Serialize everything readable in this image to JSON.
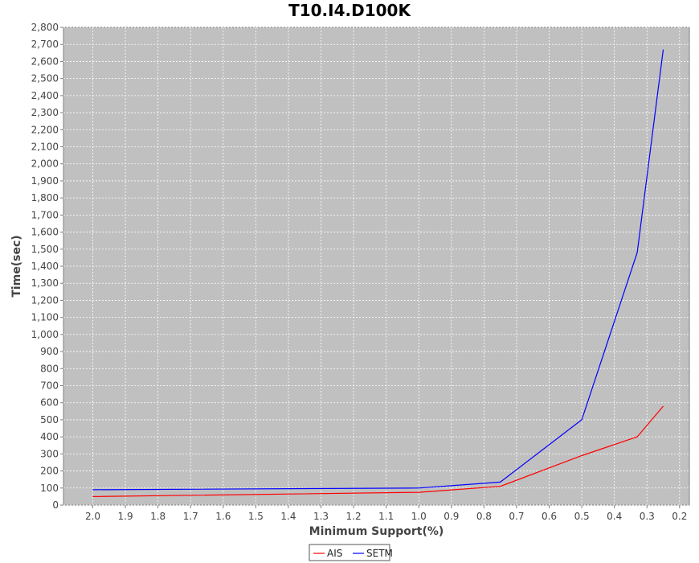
{
  "chart_data": {
    "type": "line",
    "title": "T10.I4.D100K",
    "xlabel": "Minimum Support(%)",
    "ylabel": "Time(sec)",
    "x_reversed": true,
    "xlim": [
      2.09,
      0.17
    ],
    "ylim": [
      0,
      2800
    ],
    "xticks": [
      "2.0",
      "1.9",
      "1.8",
      "1.7",
      "1.6",
      "1.5",
      "1.4",
      "1.3",
      "1.2",
      "1.1",
      "1.0",
      "0.9",
      "0.8",
      "0.7",
      "0.6",
      "0.5",
      "0.4",
      "0.3",
      "0.2"
    ],
    "yticks": [
      "0",
      "100",
      "200",
      "300",
      "400",
      "500",
      "600",
      "700",
      "800",
      "900",
      "1,000",
      "1,100",
      "1,200",
      "1,300",
      "1,400",
      "1,500",
      "1,600",
      "1,700",
      "1,800",
      "1,900",
      "2,000",
      "2,100",
      "2,200",
      "2,300",
      "2,400",
      "2,500",
      "2,600",
      "2,700",
      "2,800"
    ],
    "grid": true,
    "plot_background": "#c0c0c0",
    "legend_position": "bottom-center",
    "series": [
      {
        "name": "AIS",
        "color": "#ff0000",
        "x": [
          2.0,
          1.0,
          0.75,
          0.5,
          0.33,
          0.25
        ],
        "y": [
          50,
          75,
          110,
          290,
          400,
          580
        ]
      },
      {
        "name": "SETM",
        "color": "#0000ff",
        "x": [
          2.0,
          1.0,
          0.75,
          0.5,
          0.33,
          0.25
        ],
        "y": [
          90,
          100,
          135,
          500,
          1480,
          2670
        ]
      }
    ]
  }
}
